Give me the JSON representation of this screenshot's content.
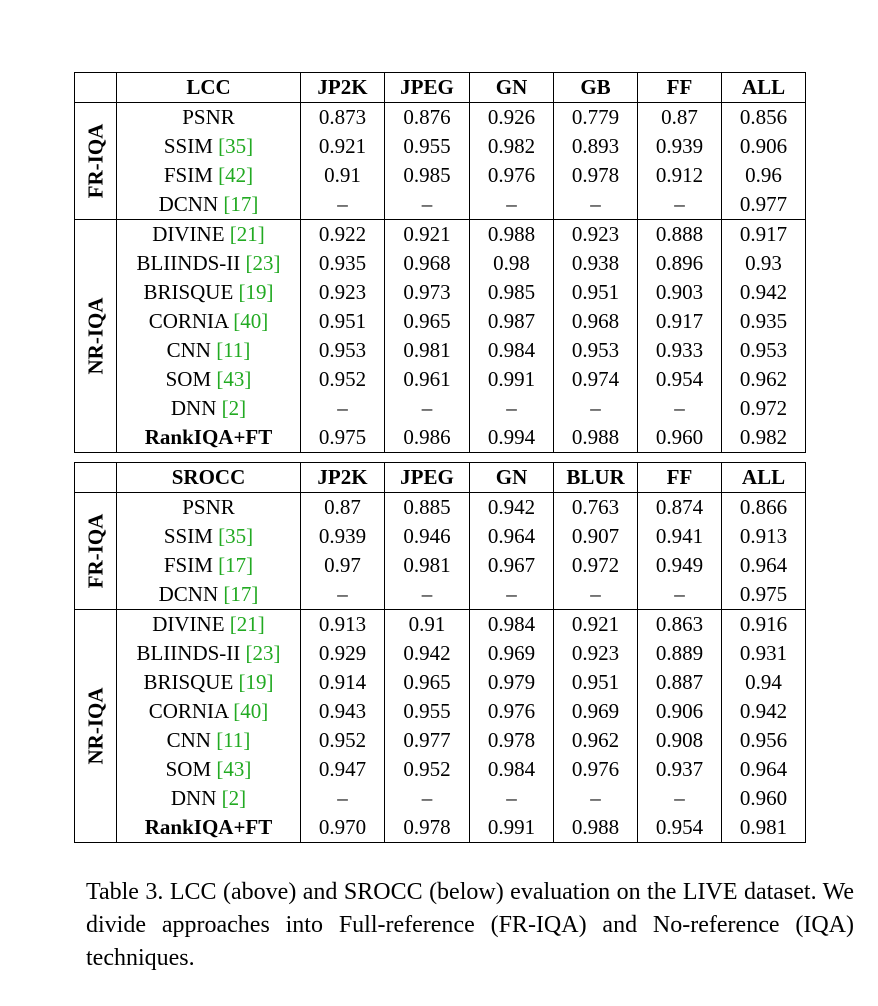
{
  "tables": [
    {
      "id": "lcc",
      "metric": "LCC",
      "columns": [
        "JP2K",
        "JPEG",
        "GN",
        "GB",
        "FF",
        "ALL"
      ],
      "groups": [
        {
          "label": "FR-IQA",
          "rows": [
            {
              "method": "PSNR",
              "ref": "",
              "values": [
                "0.873",
                "0.876",
                "0.926",
                "0.779",
                "0.87",
                "0.856"
              ]
            },
            {
              "method": "SSIM",
              "ref": "[35]",
              "values": [
                "0.921",
                "0.955",
                "0.982",
                "0.893",
                "0.939",
                "0.906"
              ]
            },
            {
              "method": "FSIM",
              "ref": "[42]",
              "values": [
                "0.91",
                "0.985",
                "0.976",
                "0.978",
                "0.912",
                "0.96"
              ]
            },
            {
              "method": "DCNN",
              "ref": "[17]",
              "values": [
                "–",
                "–",
                "–",
                "–",
                "–",
                "0.977"
              ]
            }
          ]
        },
        {
          "label": "NR-IQA",
          "rows": [
            {
              "method": "DIVINE",
              "ref": "[21]",
              "values": [
                "0.922",
                "0.921",
                "0.988",
                "0.923",
                "0.888",
                "0.917"
              ]
            },
            {
              "method": "BLIINDS-II",
              "ref": "[23]",
              "values": [
                "0.935",
                "0.968",
                "0.98",
                "0.938",
                "0.896",
                "0.93"
              ]
            },
            {
              "method": "BRISQUE",
              "ref": "[19]",
              "values": [
                "0.923",
                "0.973",
                "0.985",
                "0.951",
                "0.903",
                "0.942"
              ]
            },
            {
              "method": "CORNIA",
              "ref": "[40]",
              "values": [
                "0.951",
                "0.965",
                "0.987",
                "0.968",
                "0.917",
                "0.935"
              ]
            },
            {
              "method": "CNN",
              "ref": "[11]",
              "values": [
                "0.953",
                "0.981",
                "0.984",
                "0.953",
                "0.933",
                "0.953"
              ]
            },
            {
              "method": "SOM",
              "ref": "[43]",
              "values": [
                "0.952",
                "0.961",
                "0.991",
                "0.974",
                "0.954",
                "0.962"
              ]
            },
            {
              "method": "DNN",
              "ref": "[2]",
              "values": [
                "–",
                "–",
                "–",
                "–",
                "–",
                "0.972"
              ]
            },
            {
              "method": "RankIQA+FT",
              "ref": "",
              "bold": true,
              "values": [
                "0.975",
                "0.986",
                "0.994",
                "0.988",
                "0.960",
                "0.982"
              ]
            }
          ]
        }
      ]
    },
    {
      "id": "srocc",
      "metric": "SROCC",
      "columns": [
        "JP2K",
        "JPEG",
        "GN",
        "BLUR",
        "FF",
        "ALL"
      ],
      "groups": [
        {
          "label": "FR-IQA",
          "rows": [
            {
              "method": "PSNR",
              "ref": "",
              "values": [
                "0.87",
                "0.885",
                "0.942",
                "0.763",
                "0.874",
                "0.866"
              ]
            },
            {
              "method": "SSIM",
              "ref": "[35]",
              "values": [
                "0.939",
                "0.946",
                "0.964",
                "0.907",
                "0.941",
                "0.913"
              ]
            },
            {
              "method": "FSIM",
              "ref": "[17]",
              "values": [
                "0.97",
                "0.981",
                "0.967",
                "0.972",
                "0.949",
                "0.964"
              ]
            },
            {
              "method": "DCNN",
              "ref": "[17]",
              "values": [
                "–",
                "–",
                "–",
                "–",
                "–",
                "0.975"
              ]
            }
          ]
        },
        {
          "label": "NR-IQA",
          "rows": [
            {
              "method": "DIVINE",
              "ref": "[21]",
              "values": [
                "0.913",
                "0.91",
                "0.984",
                "0.921",
                "0.863",
                "0.916"
              ]
            },
            {
              "method": "BLIINDS-II",
              "ref": "[23]",
              "values": [
                "0.929",
                "0.942",
                "0.969",
                "0.923",
                "0.889",
                "0.931"
              ]
            },
            {
              "method": "BRISQUE",
              "ref": "[19]",
              "values": [
                "0.914",
                "0.965",
                "0.979",
                "0.951",
                "0.887",
                "0.94"
              ]
            },
            {
              "method": "CORNIA",
              "ref": "[40]",
              "values": [
                "0.943",
                "0.955",
                "0.976",
                "0.969",
                "0.906",
                "0.942"
              ]
            },
            {
              "method": "CNN",
              "ref": "[11]",
              "values": [
                "0.952",
                "0.977",
                "0.978",
                "0.962",
                "0.908",
                "0.956"
              ]
            },
            {
              "method": "SOM",
              "ref": "[43]",
              "values": [
                "0.947",
                "0.952",
                "0.984",
                "0.976",
                "0.937",
                "0.964"
              ]
            },
            {
              "method": "DNN",
              "ref": "[2]",
              "values": [
                "–",
                "–",
                "–",
                "–",
                "–",
                "0.960"
              ]
            },
            {
              "method": "RankIQA+FT",
              "ref": "",
              "bold": true,
              "values": [
                "0.970",
                "0.978",
                "0.991",
                "0.988",
                "0.954",
                "0.981"
              ]
            }
          ]
        }
      ]
    }
  ],
  "caption": "Table 3. LCC (above) and SROCC (below) evaluation on the LIVE dataset. We divide approaches into Full-reference (FR-IQA) and No-reference (IQA) techniques.",
  "colors": {
    "citation": "#22aa22"
  }
}
